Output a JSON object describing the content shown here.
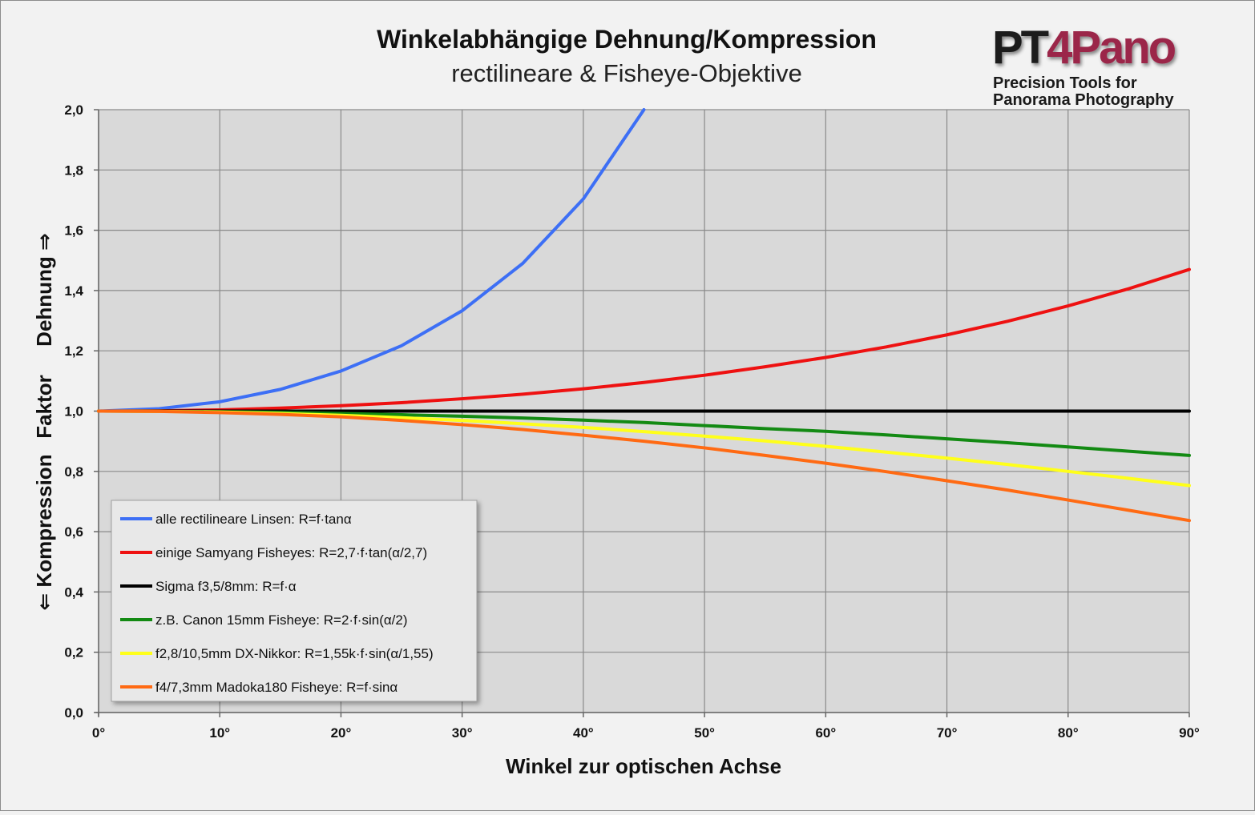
{
  "chart_data": {
    "type": "line",
    "title": "Winkelabhängige Dehnung/Kompression",
    "subtitle": "rectilineare & Fisheye-Objektive",
    "xlabel": "Winkel zur optischen Achse",
    "ylabel_parts": [
      "⇐ Kompression",
      "Faktor",
      "Dehnung ⇒"
    ],
    "xlim": [
      0,
      90
    ],
    "ylim": [
      0,
      2
    ],
    "x_ticks": [
      0,
      10,
      20,
      30,
      40,
      50,
      60,
      70,
      80,
      90
    ],
    "x_tick_labels": [
      "0°",
      "10°",
      "20°",
      "30°",
      "40°",
      "50°",
      "60°",
      "70°",
      "80°",
      "90°"
    ],
    "y_ticks": [
      0,
      0.2,
      0.4,
      0.6,
      0.8,
      1.0,
      1.2,
      1.4,
      1.6,
      1.8,
      2.0
    ],
    "y_tick_labels": [
      "0,0",
      "0,2",
      "0,4",
      "0,6",
      "0,8",
      "1,0",
      "1,2",
      "1,4",
      "1,6",
      "1,8",
      "2,0"
    ],
    "grid": true,
    "legend_position": "bottom-left",
    "x": [
      0,
      5,
      10,
      15,
      20,
      25,
      30,
      35,
      40,
      45,
      50,
      55,
      60,
      65,
      70,
      75,
      80,
      85,
      90
    ],
    "series": [
      {
        "name": "alle rectilineare Linsen: R=f·tanα",
        "color": "#3d6ff5",
        "values": [
          1.0,
          1.008,
          1.031,
          1.072,
          1.133,
          1.217,
          1.333,
          1.49,
          1.704,
          2.0,
          null,
          null,
          null,
          null,
          null,
          null,
          null,
          null,
          null
        ]
      },
      {
        "name": "einige Samyang Fisheyes:  R=2,7·f·tan(α/2,7)",
        "color": "#ee1111",
        "values": [
          1.0,
          1.001,
          1.004,
          1.01,
          1.018,
          1.028,
          1.041,
          1.056,
          1.074,
          1.095,
          1.119,
          1.147,
          1.178,
          1.213,
          1.253,
          1.298,
          1.349,
          1.406,
          1.47
        ]
      },
      {
        "name": "Sigma f3,5/8mm: R=f·α",
        "color": "#000000",
        "values": [
          1.0,
          1.0,
          1.0,
          1.0,
          1.0,
          1.0,
          1.0,
          1.0,
          1.0,
          1.0,
          1.0,
          1.0,
          1.0,
          1.0,
          1.0,
          1.0,
          1.0,
          1.0,
          1.0
        ]
      },
      {
        "name": "z.B. Canon 15mm Fisheye: R=2·f·sin(α/2)",
        "color": "#138a13",
        "values": [
          1.0,
          0.9995,
          0.998,
          0.996,
          0.992,
          0.988,
          0.983,
          0.977,
          0.97,
          0.962,
          0.952,
          0.942,
          0.933,
          0.921,
          0.908,
          0.895,
          0.881,
          0.867,
          0.853
        ]
      },
      {
        "name": "f2,8/10,5mm DX-Nikkor: R=1,55k·f·sin(α/1,55)",
        "color": "#ffff1a",
        "values": [
          1.0,
          0.999,
          0.997,
          0.992,
          0.986,
          0.978,
          0.969,
          0.958,
          0.946,
          0.932,
          0.917,
          0.901,
          0.883,
          0.864,
          0.844,
          0.823,
          0.8,
          0.777,
          0.753
        ]
      },
      {
        "name": "f4/7,3mm Madoka180 Fisheye: R=f·sinα",
        "color": "#ff6a13",
        "values": [
          1.0,
          0.999,
          0.995,
          0.989,
          0.981,
          0.969,
          0.955,
          0.939,
          0.92,
          0.9,
          0.878,
          0.853,
          0.827,
          0.799,
          0.769,
          0.738,
          0.705,
          0.671,
          0.637
        ]
      }
    ]
  },
  "logo": {
    "brand_a": "PT",
    "brand_b": "4",
    "brand_c": "Pano",
    "tagline_line1": "Precision Tools for",
    "tagline_line2": "Panorama Photography"
  }
}
